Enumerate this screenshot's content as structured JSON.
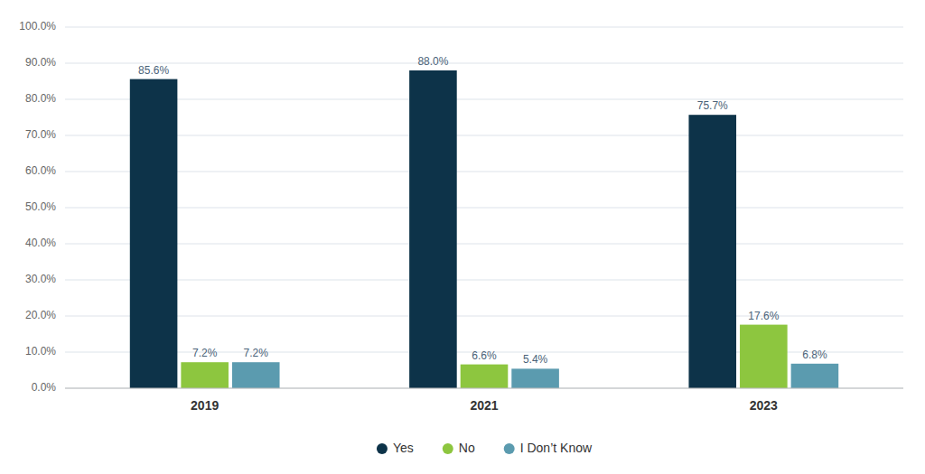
{
  "chart_data": {
    "type": "bar",
    "categories": [
      "2019",
      "2021",
      "2023"
    ],
    "series": [
      {
        "name": "Yes",
        "color": "#0d3349",
        "values": [
          85.6,
          88.0,
          75.7
        ],
        "value_labels": [
          "85.6%",
          "88.0%",
          "75.7%"
        ]
      },
      {
        "name": "No",
        "color": "#8dc63f",
        "values": [
          7.2,
          6.6,
          17.6
        ],
        "value_labels": [
          "7.2%",
          "6.6%",
          "17.6%"
        ]
      },
      {
        "name": "I Don’t Know",
        "color": "#5b9baf",
        "values": [
          7.2,
          5.4,
          6.8
        ],
        "value_labels": [
          "7.2%",
          "5.4%",
          "6.8%"
        ]
      }
    ],
    "ylim": [
      0,
      100
    ],
    "yticks": [
      {
        "value": 0,
        "label": "0.0%"
      },
      {
        "value": 10,
        "label": "10.0%"
      },
      {
        "value": 20,
        "label": "20.0%"
      },
      {
        "value": 30,
        "label": "30.0%"
      },
      {
        "value": 40,
        "label": "40.0%"
      },
      {
        "value": 50,
        "label": "50.0%"
      },
      {
        "value": 60,
        "label": "60.0%"
      },
      {
        "value": 70,
        "label": "70.0%"
      },
      {
        "value": 80,
        "label": "80.0%"
      },
      {
        "value": 90,
        "label": "90.0%"
      },
      {
        "value": 100,
        "label": "100.0%"
      }
    ],
    "grid": true,
    "data_labels": true,
    "legend": "bottom"
  }
}
